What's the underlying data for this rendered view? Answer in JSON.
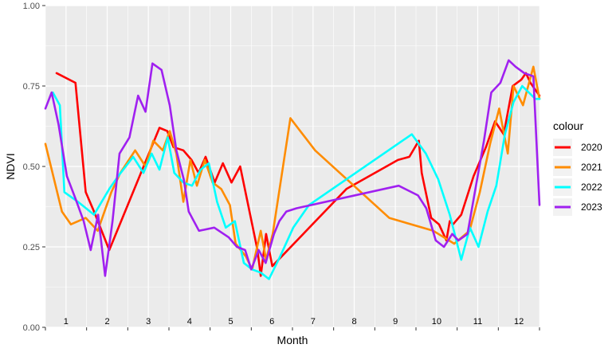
{
  "chart_data": {
    "type": "line",
    "xlabel": "Month",
    "ylabel": "NDVI",
    "ylim": [
      0,
      1
    ],
    "xlim": [
      0,
      12
    ],
    "y_ticks": [
      "0.00",
      "0.25",
      "0.50",
      "0.75",
      "1.00"
    ],
    "month_labels": [
      "1",
      "2",
      "3",
      "4",
      "5",
      "6",
      "7",
      "8",
      "9",
      "10",
      "11",
      "12"
    ],
    "legend_title": "colour",
    "legend_position": "right",
    "grid": true,
    "panel_background": "#ebebeb",
    "series": [
      {
        "name": "2020",
        "color": "#ff0000",
        "x": [
          0.27,
          0.73,
          0.98,
          1.18,
          1.55,
          2.77,
          2.96,
          3.11,
          3.35,
          3.55,
          3.72,
          3.89,
          4.11,
          4.31,
          4.52,
          4.73,
          5.15,
          5.23,
          5.36,
          5.51,
          7.31,
          8.56,
          8.84,
          9.07,
          9.14,
          9.37,
          9.56,
          9.74,
          9.82,
          9.9,
          10.1,
          10.4,
          10.7,
          10.92,
          11.13,
          11.35,
          11.56,
          11.67,
          11.78,
          12.0
        ],
        "values": [
          0.79,
          0.76,
          0.42,
          0.36,
          0.24,
          0.62,
          0.61,
          0.56,
          0.55,
          0.52,
          0.48,
          0.53,
          0.45,
          0.51,
          0.45,
          0.5,
          0.24,
          0.16,
          0.29,
          0.19,
          0.43,
          0.52,
          0.53,
          0.58,
          0.48,
          0.34,
          0.32,
          0.27,
          0.33,
          0.32,
          0.35,
          0.47,
          0.56,
          0.64,
          0.6,
          0.75,
          0.77,
          0.79,
          0.76,
          0.72
        ]
      },
      {
        "name": "2021",
        "color": "#ff8c00",
        "x": [
          0.0,
          0.4,
          0.62,
          0.98,
          1.27,
          1.6,
          1.82,
          2.18,
          2.43,
          2.62,
          2.85,
          3.02,
          3.18,
          3.35,
          3.52,
          3.68,
          3.87,
          4.06,
          4.27,
          4.48,
          4.62,
          4.87,
          5.02,
          5.23,
          5.36,
          5.52,
          5.95,
          6.55,
          8.35,
          9.42,
          9.93,
          10.3,
          10.55,
          10.8,
          11.02,
          11.23,
          11.37,
          11.6,
          11.85,
          12.0
        ],
        "values": [
          0.57,
          0.36,
          0.32,
          0.34,
          0.3,
          0.42,
          0.48,
          0.55,
          0.5,
          0.58,
          0.55,
          0.61,
          0.54,
          0.39,
          0.52,
          0.44,
          0.52,
          0.45,
          0.43,
          0.38,
          0.26,
          0.22,
          0.18,
          0.3,
          0.21,
          0.29,
          0.65,
          0.55,
          0.34,
          0.3,
          0.26,
          0.3,
          0.42,
          0.57,
          0.68,
          0.54,
          0.75,
          0.69,
          0.81,
          0.71
        ]
      },
      {
        "name": "2022",
        "color": "#00ffff",
        "x": [
          0.18,
          0.35,
          0.46,
          0.79,
          1.18,
          1.55,
          1.77,
          2.13,
          2.38,
          2.58,
          2.77,
          2.97,
          3.13,
          3.35,
          3.56,
          3.77,
          3.97,
          4.17,
          4.38,
          4.6,
          4.82,
          5.02,
          5.23,
          5.43,
          5.7,
          6.02,
          6.4,
          8.9,
          9.24,
          9.54,
          9.82,
          10.1,
          10.31,
          10.52,
          10.74,
          10.95,
          11.16,
          11.37,
          11.58,
          11.9,
          12.0
        ],
        "values": [
          0.73,
          0.69,
          0.42,
          0.39,
          0.35,
          0.43,
          0.47,
          0.53,
          0.48,
          0.54,
          0.49,
          0.59,
          0.48,
          0.45,
          0.44,
          0.49,
          0.51,
          0.39,
          0.31,
          0.33,
          0.2,
          0.18,
          0.17,
          0.15,
          0.22,
          0.31,
          0.38,
          0.6,
          0.54,
          0.46,
          0.35,
          0.21,
          0.31,
          0.25,
          0.36,
          0.44,
          0.6,
          0.7,
          0.75,
          0.71,
          0.71
        ]
      },
      {
        "name": "2023",
        "color": "#a020f0",
        "x": [
          0.0,
          0.15,
          0.32,
          0.52,
          0.73,
          0.93,
          1.1,
          1.28,
          1.45,
          1.63,
          1.8,
          2.04,
          2.25,
          2.43,
          2.6,
          2.82,
          3.02,
          3.18,
          3.36,
          3.48,
          3.73,
          4.1,
          4.45,
          4.65,
          4.85,
          5.0,
          5.18,
          5.35,
          5.55,
          5.68,
          5.85,
          6.1,
          8.58,
          9.05,
          9.25,
          9.48,
          9.68,
          9.88,
          10.03,
          10.25,
          10.47,
          10.65,
          10.83,
          11.05,
          11.25,
          11.42,
          11.63,
          11.85,
          12.0
        ],
        "values": [
          0.68,
          0.73,
          0.63,
          0.47,
          0.4,
          0.33,
          0.24,
          0.35,
          0.16,
          0.33,
          0.54,
          0.59,
          0.72,
          0.67,
          0.82,
          0.8,
          0.69,
          0.55,
          0.46,
          0.36,
          0.3,
          0.31,
          0.28,
          0.25,
          0.24,
          0.18,
          0.24,
          0.2,
          0.29,
          0.33,
          0.36,
          0.37,
          0.44,
          0.41,
          0.37,
          0.27,
          0.25,
          0.29,
          0.27,
          0.29,
          0.45,
          0.58,
          0.73,
          0.76,
          0.83,
          0.81,
          0.79,
          0.78,
          0.38
        ]
      }
    ]
  }
}
